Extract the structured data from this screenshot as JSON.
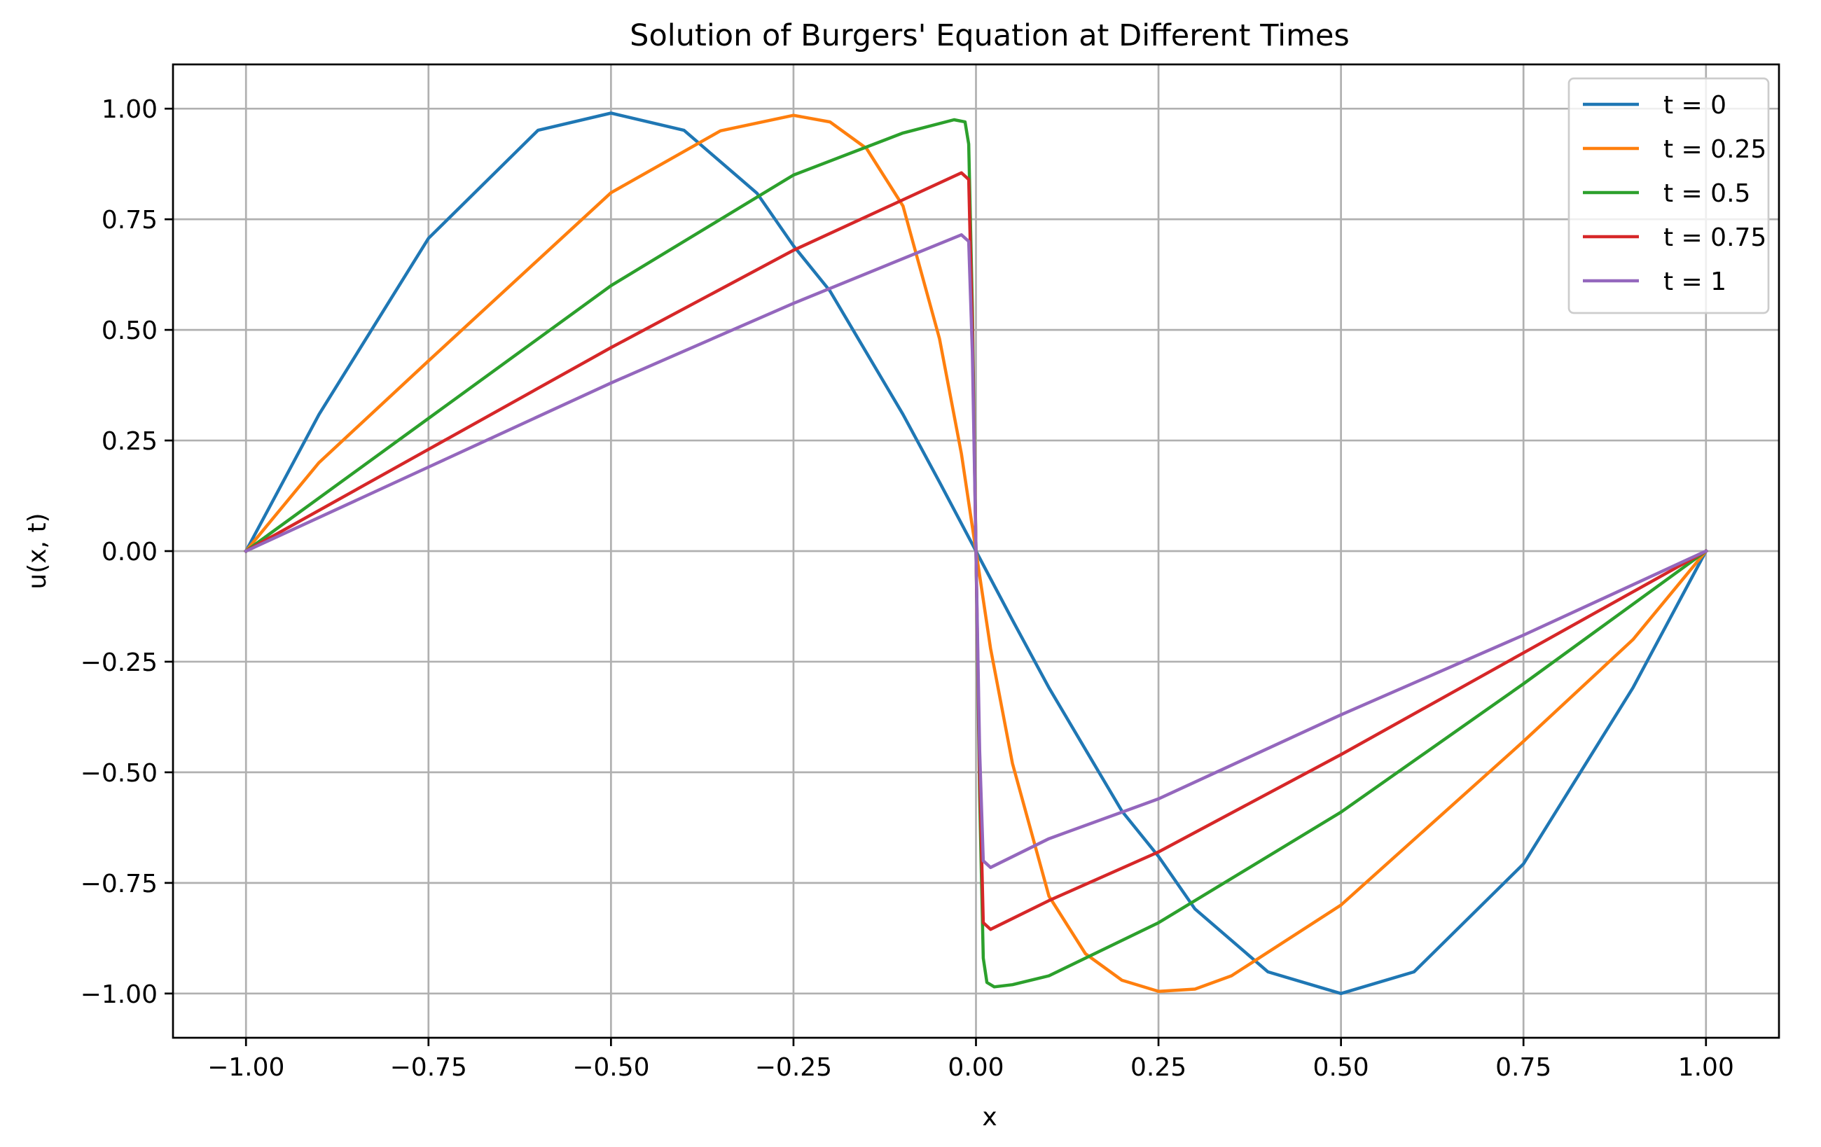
{
  "chart_data": {
    "type": "line",
    "title": "Solution of Burgers' Equation at Different Times",
    "xlabel": "x",
    "ylabel": "u(x, t)",
    "xlim": [
      -1.1,
      1.1
    ],
    "ylim": [
      -1.1,
      1.1
    ],
    "xticks": [
      -1.0,
      -0.75,
      -0.5,
      -0.25,
      0.0,
      0.25,
      0.5,
      0.75,
      1.0
    ],
    "xtick_labels": [
      "−1.00",
      "−0.75",
      "−0.50",
      "−0.25",
      "0.00",
      "0.25",
      "0.50",
      "0.75",
      "1.00"
    ],
    "yticks": [
      -1.0,
      -0.75,
      -0.5,
      -0.25,
      0.0,
      0.25,
      0.5,
      0.75,
      1.0
    ],
    "ytick_labels": [
      "−1.00",
      "−0.75",
      "−0.50",
      "−0.25",
      "0.00",
      "0.25",
      "0.50",
      "0.75",
      "1.00"
    ],
    "grid": true,
    "legend_position": "top-right",
    "series": [
      {
        "name": "t = 0",
        "color": "#1f77b4",
        "x": [
          -1.0,
          -0.9,
          -0.75,
          -0.6,
          -0.5,
          -0.4,
          -0.3,
          -0.25,
          -0.2,
          -0.1,
          -0.05,
          0.0,
          0.05,
          0.1,
          0.2,
          0.25,
          0.3,
          0.4,
          0.5,
          0.6,
          0.75,
          0.9,
          1.0
        ],
        "y": [
          0.0,
          0.309,
          0.707,
          0.951,
          0.99,
          0.951,
          0.809,
          0.69,
          0.588,
          0.309,
          0.156,
          0.0,
          -0.156,
          -0.309,
          -0.588,
          -0.69,
          -0.809,
          -0.951,
          -1.0,
          -0.951,
          -0.707,
          -0.309,
          0.0
        ]
      },
      {
        "name": "t = 0.25",
        "color": "#ff7f0e",
        "x": [
          -1.0,
          -0.9,
          -0.75,
          -0.5,
          -0.35,
          -0.25,
          -0.2,
          -0.15,
          -0.1,
          -0.05,
          -0.02,
          0.0,
          0.02,
          0.05,
          0.1,
          0.15,
          0.2,
          0.25,
          0.3,
          0.35,
          0.5,
          0.75,
          0.9,
          1.0
        ],
        "y": [
          0.0,
          0.2,
          0.43,
          0.81,
          0.95,
          0.985,
          0.97,
          0.91,
          0.78,
          0.48,
          0.22,
          0.0,
          -0.22,
          -0.48,
          -0.78,
          -0.91,
          -0.97,
          -0.995,
          -0.99,
          -0.96,
          -0.8,
          -0.43,
          -0.2,
          0.0
        ]
      },
      {
        "name": "t = 0.5",
        "color": "#2ca02c",
        "x": [
          -1.0,
          -0.75,
          -0.5,
          -0.25,
          -0.1,
          -0.03,
          -0.015,
          -0.01,
          -0.005,
          0.0,
          0.005,
          0.01,
          0.015,
          0.025,
          0.05,
          0.1,
          0.25,
          0.5,
          0.75,
          1.0
        ],
        "y": [
          0.0,
          0.3,
          0.6,
          0.85,
          0.945,
          0.975,
          0.97,
          0.92,
          0.55,
          0.0,
          -0.55,
          -0.92,
          -0.975,
          -0.985,
          -0.98,
          -0.96,
          -0.84,
          -0.59,
          -0.3,
          0.0
        ]
      },
      {
        "name": "t = 0.75",
        "color": "#d62728",
        "x": [
          -1.0,
          -0.75,
          -0.5,
          -0.25,
          -0.02,
          -0.01,
          -0.005,
          0.0,
          0.005,
          0.01,
          0.02,
          0.1,
          0.25,
          0.5,
          0.75,
          1.0
        ],
        "y": [
          0.0,
          0.23,
          0.46,
          0.68,
          0.855,
          0.84,
          0.5,
          0.0,
          -0.5,
          -0.84,
          -0.855,
          -0.79,
          -0.68,
          -0.46,
          -0.23,
          0.0
        ]
      },
      {
        "name": "t = 1",
        "color": "#9467bd",
        "x": [
          -1.0,
          -0.75,
          -0.5,
          -0.25,
          -0.02,
          -0.01,
          -0.005,
          0.0,
          0.005,
          0.01,
          0.02,
          0.1,
          0.25,
          0.5,
          0.75,
          1.0
        ],
        "y": [
          0.0,
          0.19,
          0.38,
          0.56,
          0.715,
          0.7,
          0.45,
          0.0,
          -0.45,
          -0.7,
          -0.715,
          -0.65,
          -0.56,
          -0.37,
          -0.19,
          0.0
        ]
      }
    ]
  }
}
